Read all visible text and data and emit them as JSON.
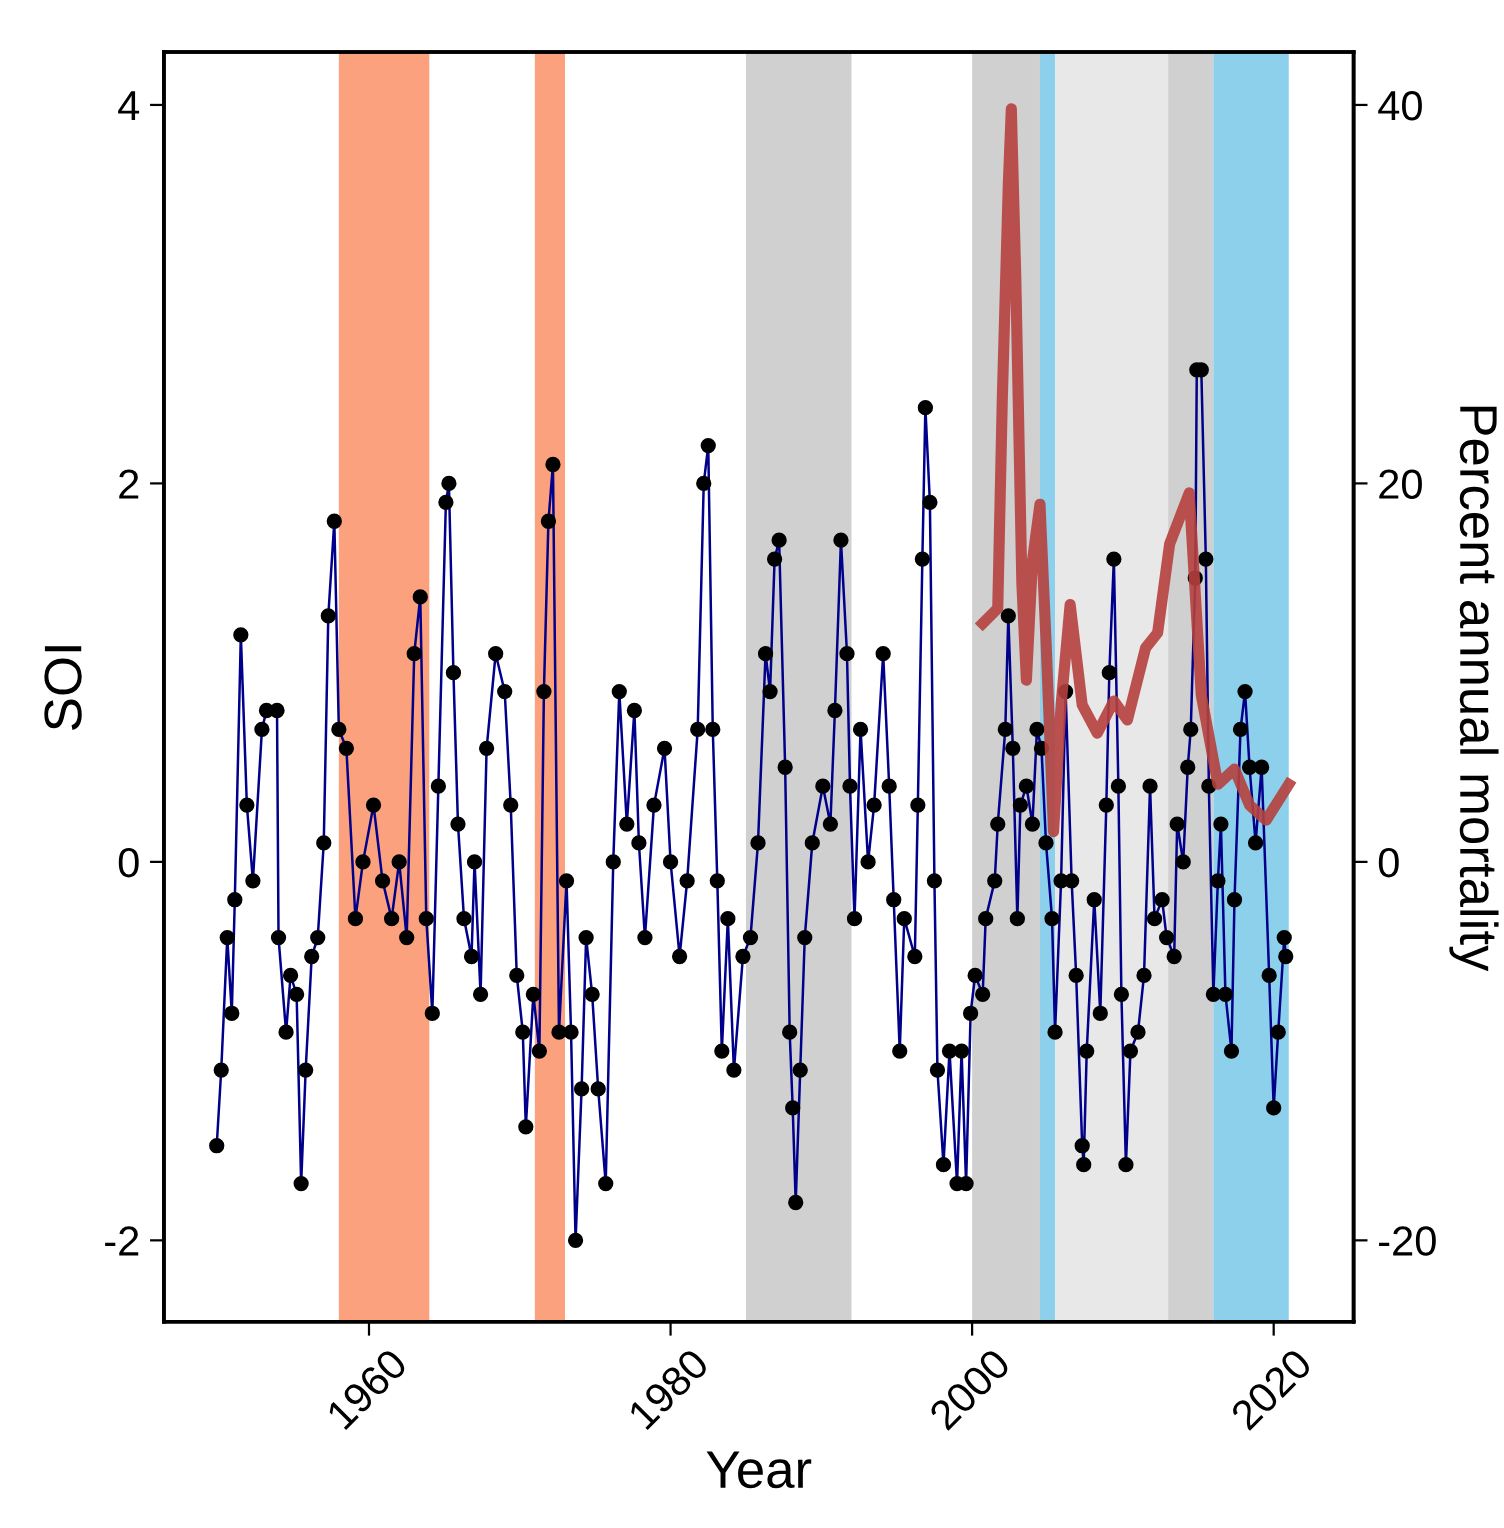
{
  "chart_data": {
    "type": "line",
    "xlabel": "Year",
    "ylabel": "SOI",
    "y2label": "Percent annual mortality",
    "xlim": [
      1946.4,
      2025.3
    ],
    "xticks": [
      1960,
      1980,
      2000,
      2020
    ],
    "ylim": [
      -2.43,
      4.28
    ],
    "yticks": [
      -2,
      0,
      2,
      4
    ],
    "y2lim": [
      -24.3,
      42.8
    ],
    "y2ticks": [
      -20,
      0,
      20,
      40
    ],
    "grid": false,
    "legend": false,
    "bands": [
      {
        "axis": "x",
        "from": 1958,
        "to": 1964,
        "color": "#fca17d"
      },
      {
        "axis": "x",
        "from": 1971,
        "to": 1973,
        "color": "#fca17d"
      },
      {
        "axis": "x",
        "from": 1985,
        "to": 1992,
        "color": "#d0d0d0"
      },
      {
        "axis": "x",
        "from": 2000,
        "to": 2004.5,
        "color": "#d0d0d0"
      },
      {
        "axis": "x",
        "from": 2004.5,
        "to": 2005.5,
        "color": "#8dd0ec"
      },
      {
        "axis": "x",
        "from": 2005.5,
        "to": 2013,
        "color": "#e8e8e8"
      },
      {
        "axis": "x",
        "from": 2013,
        "to": 2016,
        "color": "#d0d0d0"
      },
      {
        "axis": "x",
        "from": 2016,
        "to": 2021,
        "color": "#8dd0ec"
      }
    ],
    "series": [
      {
        "color": "#00008b",
        "marker": "circle",
        "line_style": "solid",
        "x": [
          1949.9,
          1950.2,
          1950.6,
          1950.9,
          1951.1,
          1951.5,
          1951.9,
          1952.3,
          1952.9,
          1953.2,
          1953.9,
          1954.0,
          1954.5,
          1954.8,
          1955.2,
          1955.5,
          1955.8,
          1956.2,
          1956.6,
          1957.0,
          1957.3,
          1957.7,
          1958.0,
          1958.5,
          1959.1,
          1959.6,
          1960.3,
          1960.9,
          1961.5,
          1962.0,
          1962.5,
          1963.0,
          1963.4,
          1963.8,
          1964.2,
          1964.6,
          1965.1,
          1965.3,
          1965.6,
          1965.9,
          1966.3,
          1966.8,
          1967.0,
          1967.4,
          1967.8,
          1968.4,
          1969.0,
          1969.4,
          1969.8,
          1970.2,
          1970.4,
          1970.9,
          1971.3,
          1971.6,
          1971.9,
          1972.2,
          1972.6,
          1973.1,
          1973.4,
          1973.7,
          1974.1,
          1974.4,
          1974.8,
          1975.2,
          1975.7,
          1976.2,
          1976.6,
          1977.1,
          1977.6,
          1977.9,
          1978.3,
          1978.9,
          1979.6,
          1980.0,
          1980.6,
          1981.1,
          1981.8,
          1982.2,
          1982.5,
          1982.8,
          1983.1,
          1983.4,
          1983.8,
          1984.2,
          1984.8,
          1985.3,
          1985.8,
          1986.3,
          1986.6,
          1986.9,
          1987.2,
          1987.6,
          1987.9,
          1988.1,
          1988.3,
          1988.6,
          1988.9,
          1989.4,
          1990.1,
          1990.6,
          1990.9,
          1991.3,
          1991.7,
          1991.9,
          1992.2,
          1992.6,
          1993.1,
          1993.5,
          1994.1,
          1994.5,
          1994.8,
          1995.2,
          1995.5,
          1996.2,
          1996.4,
          1996.7,
          1996.9,
          1997.2,
          1997.5,
          1997.7,
          1998.1,
          1998.5,
          1999.0,
          1999.3,
          1999.6,
          1999.9,
          2000.2,
          2000.7,
          2000.9,
          2001.5,
          2001.7,
          2002.2,
          2002.4,
          2002.7,
          2003.0,
          2003.2,
          2003.6,
          2004.0,
          2004.3,
          2004.6,
          2004.9,
          2005.3,
          2005.5,
          2005.9,
          2006.2,
          2006.6,
          2006.9,
          2007.3,
          2007.4,
          2007.6,
          2008.1,
          2008.5,
          2008.9,
          2009.1,
          2009.4,
          2009.7,
          2009.9,
          2010.2,
          2010.5,
          2011.0,
          2011.4,
          2011.8,
          2012.1,
          2012.6,
          2012.9,
          2013.4,
          2013.6,
          2014.0,
          2014.3,
          2014.5,
          2014.8,
          2014.9,
          2015.2,
          2015.5,
          2015.7,
          2016.0,
          2016.3,
          2016.5,
          2016.8,
          2017.2,
          2017.4,
          2017.8,
          2018.1,
          2018.4,
          2018.8,
          2019.2,
          2019.7,
          2020.0,
          2020.3,
          2020.7,
          2020.8
        ],
        "values": [
          -1.5,
          -1.1,
          -0.4,
          -0.8,
          -0.2,
          1.2,
          0.3,
          -0.1,
          0.7,
          0.8,
          0.8,
          -0.4,
          -0.9,
          -0.6,
          -0.7,
          -1.7,
          -1.1,
          -0.5,
          -0.4,
          0.1,
          1.3,
          1.8,
          0.7,
          0.6,
          -0.3,
          0.0,
          0.3,
          -0.1,
          -0.3,
          0.0,
          -0.4,
          1.1,
          1.4,
          -0.3,
          -0.8,
          0.4,
          1.9,
          2.0,
          1.0,
          0.2,
          -0.3,
          -0.5,
          0.0,
          -0.7,
          0.6,
          1.1,
          0.9,
          0.3,
          -0.6,
          -0.9,
          -1.4,
          -0.7,
          -1.0,
          0.9,
          1.8,
          2.1,
          -0.9,
          -0.1,
          -0.9,
          -2.0,
          -1.2,
          -0.4,
          -0.7,
          -1.2,
          -1.7,
          0.0,
          0.9,
          0.2,
          0.8,
          0.1,
          -0.4,
          0.3,
          0.6,
          0.0,
          -0.5,
          -0.1,
          0.7,
          2.0,
          2.2,
          0.7,
          -0.1,
          -1.0,
          -0.3,
          -1.1,
          -0.5,
          -0.4,
          0.1,
          1.1,
          0.9,
          1.6,
          1.7,
          0.5,
          -0.9,
          -1.3,
          -1.8,
          -1.1,
          -0.4,
          0.1,
          0.4,
          0.2,
          0.8,
          1.7,
          1.1,
          0.4,
          -0.3,
          0.7,
          0.0,
          0.3,
          1.1,
          0.4,
          -0.2,
          -1.0,
          -0.3,
          -0.5,
          0.3,
          1.6,
          2.4,
          1.9,
          -0.1,
          -1.1,
          -1.6,
          -1.0,
          -1.7,
          -1.0,
          -1.7,
          -0.8,
          -0.6,
          -0.7,
          -0.3,
          -0.1,
          0.2,
          0.7,
          1.3,
          0.6,
          -0.3,
          0.3,
          0.4,
          0.2,
          0.7,
          0.6,
          0.1,
          -0.3,
          -0.9,
          -0.1,
          0.9,
          -0.1,
          -0.6,
          -1.5,
          -1.6,
          -1.0,
          -0.2,
          -0.8,
          0.3,
          1.0,
          1.6,
          0.4,
          -0.7,
          -1.6,
          -1.0,
          -0.9,
          -0.6,
          0.4,
          -0.3,
          -0.2,
          -0.4,
          -0.5,
          0.2,
          0.0,
          0.5,
          0.7,
          1.5,
          2.6,
          2.6,
          1.6,
          0.4,
          -0.7,
          -0.1,
          0.2,
          -0.7,
          -1.0,
          -0.2,
          0.7,
          0.9,
          0.5,
          0.1,
          0.5,
          -0.6,
          -1.3,
          -0.9,
          -0.4,
          -0.5
        ]
      },
      {
        "axis": "y2",
        "color": "#b5403d",
        "marker": "none",
        "line_style": "solid",
        "x": [
          2000.7,
          2001.7,
          2002.0,
          2002.4,
          2002.6,
          2002.9,
          2003.3,
          2003.6,
          2004.0,
          2004.5,
          2004.9,
          2005.4,
          2005.9,
          2006.5,
          2007.3,
          2008.3,
          2009.4,
          2010.3,
          2011.5,
          2012.3,
          2013.1,
          2014.4,
          2015.2,
          2016.3,
          2017.4,
          2018.4,
          2019.5,
          2021.0
        ],
        "values": [
          12.6,
          13.4,
          24.4,
          35.8,
          39.8,
          30.7,
          14.7,
          9.6,
          15.9,
          18.9,
          11.7,
          1.6,
          8.3,
          13.6,
          8.3,
          6.8,
          8.5,
          7.5,
          11.3,
          12.1,
          16.8,
          19.5,
          8.8,
          4.1,
          4.9,
          3.0,
          2.2,
          4.1
        ]
      }
    ]
  }
}
